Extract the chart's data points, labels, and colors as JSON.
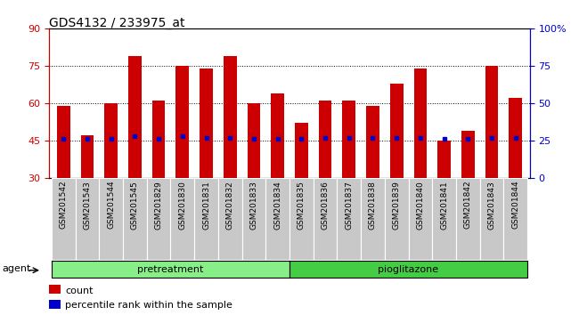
{
  "title": "GDS4132 / 233975_at",
  "samples": [
    "GSM201542",
    "GSM201543",
    "GSM201544",
    "GSM201545",
    "GSM201829",
    "GSM201830",
    "GSM201831",
    "GSM201832",
    "GSM201833",
    "GSM201834",
    "GSM201835",
    "GSM201836",
    "GSM201837",
    "GSM201838",
    "GSM201839",
    "GSM201840",
    "GSM201841",
    "GSM201842",
    "GSM201843",
    "GSM201844"
  ],
  "counts": [
    59,
    47,
    60,
    79,
    61,
    75,
    74,
    79,
    60,
    64,
    52,
    61,
    61,
    59,
    68,
    74,
    45,
    49,
    75,
    62
  ],
  "percentile_right": [
    26,
    26,
    26,
    28,
    26,
    28,
    27,
    27,
    26,
    26,
    26,
    27,
    27,
    27,
    27,
    27,
    26,
    26,
    27,
    27
  ],
  "bar_color": "#cc0000",
  "dot_color": "#0000cc",
  "ylim_left": [
    30,
    90
  ],
  "ylim_right": [
    0,
    100
  ],
  "yticks_left": [
    30,
    45,
    60,
    75,
    90
  ],
  "yticks_right": [
    0,
    25,
    50,
    75,
    100
  ],
  "ytick_labels_right": [
    "0",
    "25",
    "50",
    "75",
    "100%"
  ],
  "groups": [
    {
      "label": "pretreatment",
      "start": 0,
      "end": 10,
      "color": "#88ee88"
    },
    {
      "label": "pioglitazone",
      "start": 10,
      "end": 20,
      "color": "#44cc44"
    }
  ],
  "agent_label": "agent",
  "legend_items": [
    {
      "label": "count",
      "color": "#cc0000"
    },
    {
      "label": "percentile rank within the sample",
      "color": "#0000cc"
    }
  ],
  "bar_width": 0.55,
  "dotted_lines": [
    45,
    60,
    75
  ],
  "background_color": "#ffffff",
  "tick_label_fontsize": 6.5,
  "axis_label_color_left": "#cc0000",
  "axis_label_color_right": "#0000cc",
  "title_fontsize": 10,
  "gray_cell_color": "#c8c8c8"
}
